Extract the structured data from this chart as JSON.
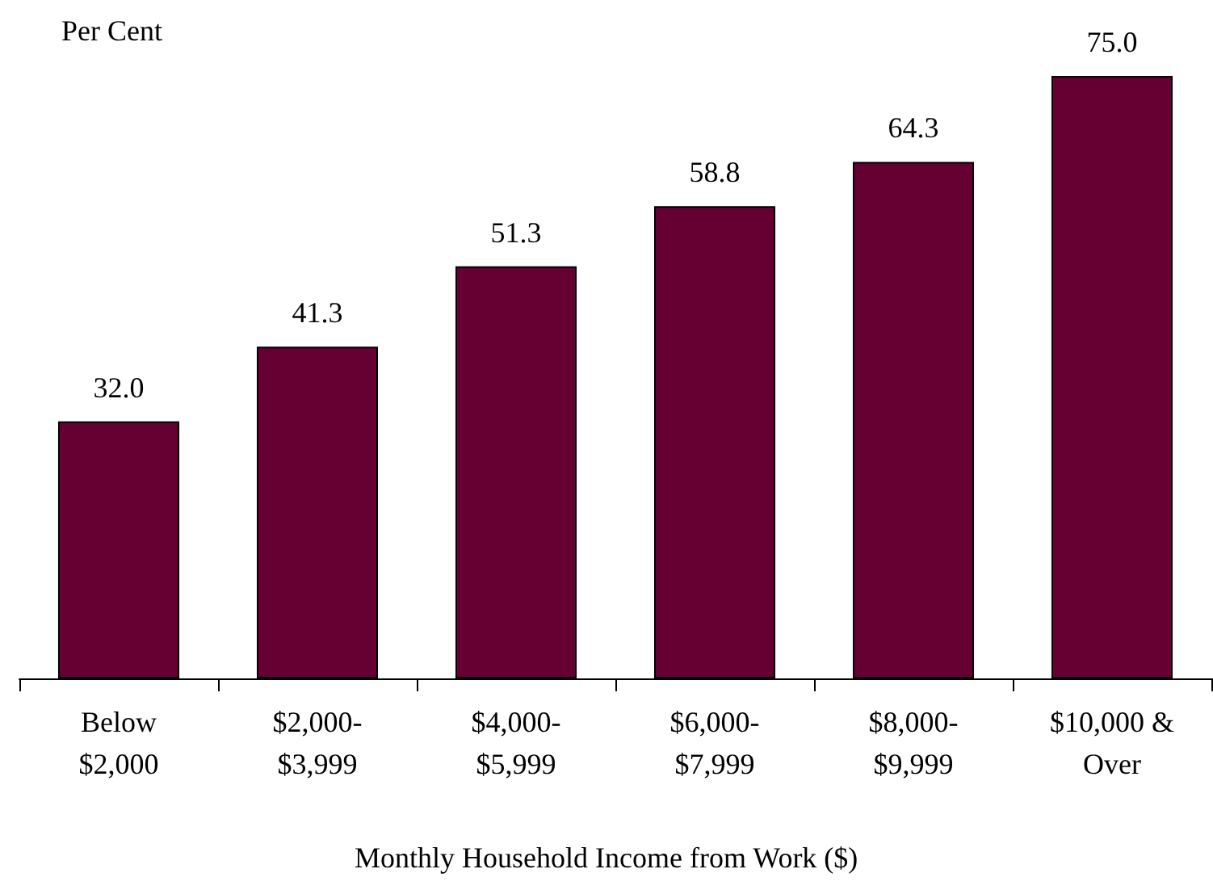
{
  "chart_data": {
    "type": "bar",
    "ylabel": "Per Cent",
    "xlabel": "Monthly Household Income from Work ($)",
    "categories": [
      "Below\n$2,000",
      "$2,000-\n$3,999",
      "$4,000-\n$5,999",
      "$6,000-\n$7,999",
      "$8,000-\n$9,999",
      "$10,000 &\nOver"
    ],
    "values": [
      32.0,
      41.3,
      51.3,
      58.8,
      64.3,
      75.0
    ],
    "value_labels": [
      "32.0",
      "41.3",
      "51.3",
      "58.8",
      "64.3",
      "75.0"
    ],
    "color": "#660033",
    "grid": false
  }
}
